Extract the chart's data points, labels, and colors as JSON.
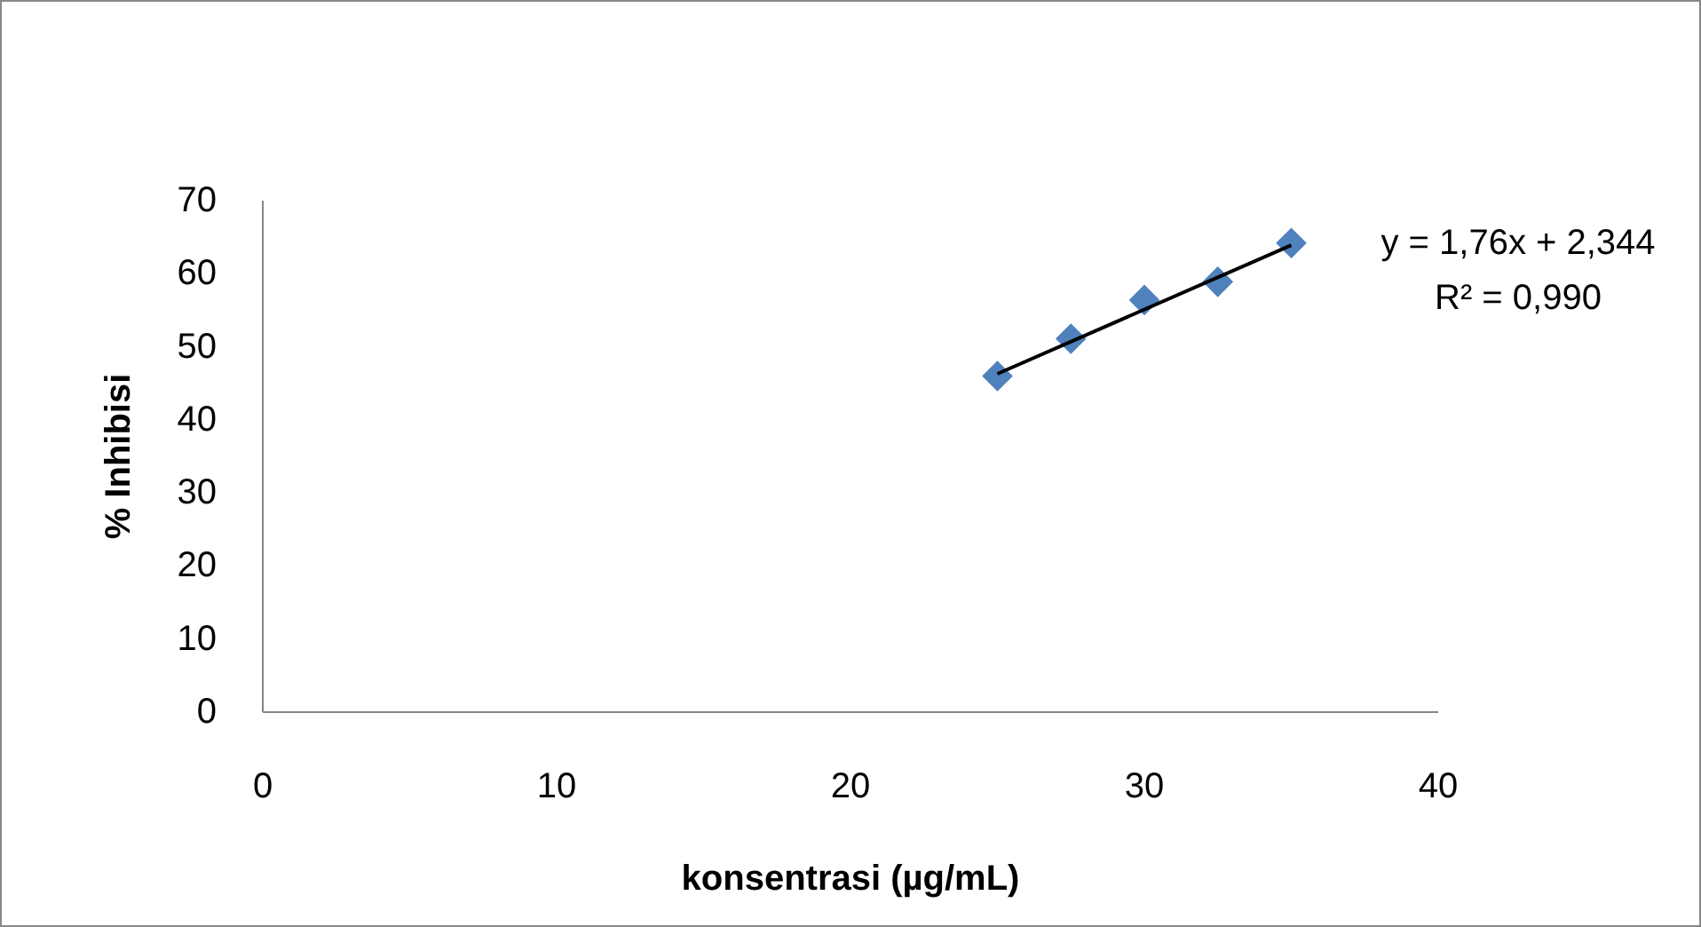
{
  "chart_data": {
    "type": "scatter",
    "xlabel": "konsentrasi (µg/mL)",
    "ylabel": "% Inhibisi",
    "xlim": [
      0,
      40
    ],
    "ylim": [
      0,
      70
    ],
    "xticks": [
      0,
      10,
      20,
      30,
      40
    ],
    "yticks": [
      0,
      10,
      20,
      30,
      40,
      50,
      60,
      70
    ],
    "grid": false,
    "marker": "diamond",
    "series": [
      {
        "color": "#4f81bd",
        "x": [
          25,
          27.5,
          30,
          32.5,
          35
        ],
        "values": [
          46.0,
          51.1,
          56.4,
          58.9,
          64.2
        ]
      },
      {
        "type": "line",
        "color": "#000000",
        "marker": "none",
        "line_style": "solid",
        "x": [
          25,
          35
        ],
        "values": [
          46.3,
          63.9
        ]
      }
    ],
    "annotations": [
      "y = 1,76x + 2,344",
      "R² = 0,990"
    ]
  }
}
